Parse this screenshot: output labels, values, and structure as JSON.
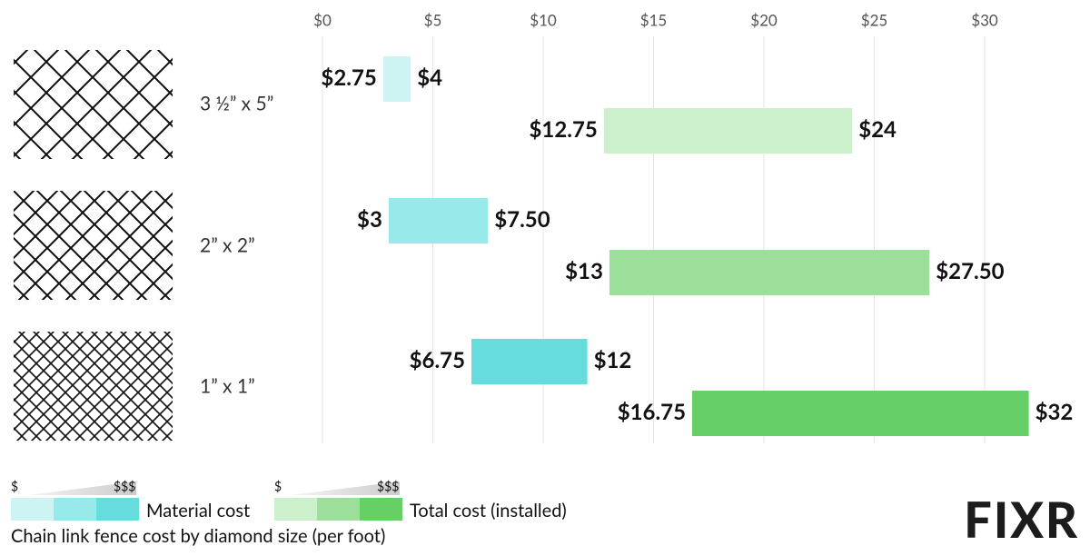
{
  "chart_data": {
    "type": "range-bar",
    "title": "Chain link fence cost by diamond size (per foot)",
    "categories": [
      "3 ½” x 5”",
      "2” x 2”",
      "1” x 1”"
    ],
    "series": [
      {
        "name": "Material cost",
        "colors": [
          "#cdf3f3",
          "#98e9e9",
          "#66dcdc"
        ],
        "values": [
          [
            2.75,
            4
          ],
          [
            3,
            7.5
          ],
          [
            6.75,
            12
          ]
        ],
        "value_labels": [
          [
            "$2.75",
            "$4"
          ],
          [
            "$3",
            "$7.50"
          ],
          [
            "$6.75",
            "$12"
          ]
        ]
      },
      {
        "name": "Total cost (installed)",
        "colors": [
          "#cdf0cc",
          "#9cdf9a",
          "#66cf66"
        ],
        "values": [
          [
            12.75,
            24
          ],
          [
            13,
            27.5
          ],
          [
            16.75,
            32
          ]
        ],
        "value_labels": [
          [
            "$12.75",
            "$24"
          ],
          [
            "$13",
            "$27.50"
          ],
          [
            "$16.75",
            "$32"
          ]
        ]
      }
    ],
    "xlim": [
      0,
      32
    ],
    "xticks": [
      {
        "value": 0,
        "label": "$0"
      },
      {
        "value": 5,
        "label": "$5"
      },
      {
        "value": 10,
        "label": "$10"
      },
      {
        "value": 15,
        "label": "$15"
      },
      {
        "value": 20,
        "label": "$20"
      },
      {
        "value": 25,
        "label": "$25"
      },
      {
        "value": 30,
        "label": "$30"
      }
    ],
    "grid": true,
    "legend_scale": {
      "low": "$",
      "high": "$$$"
    },
    "logo": "FIXR"
  }
}
